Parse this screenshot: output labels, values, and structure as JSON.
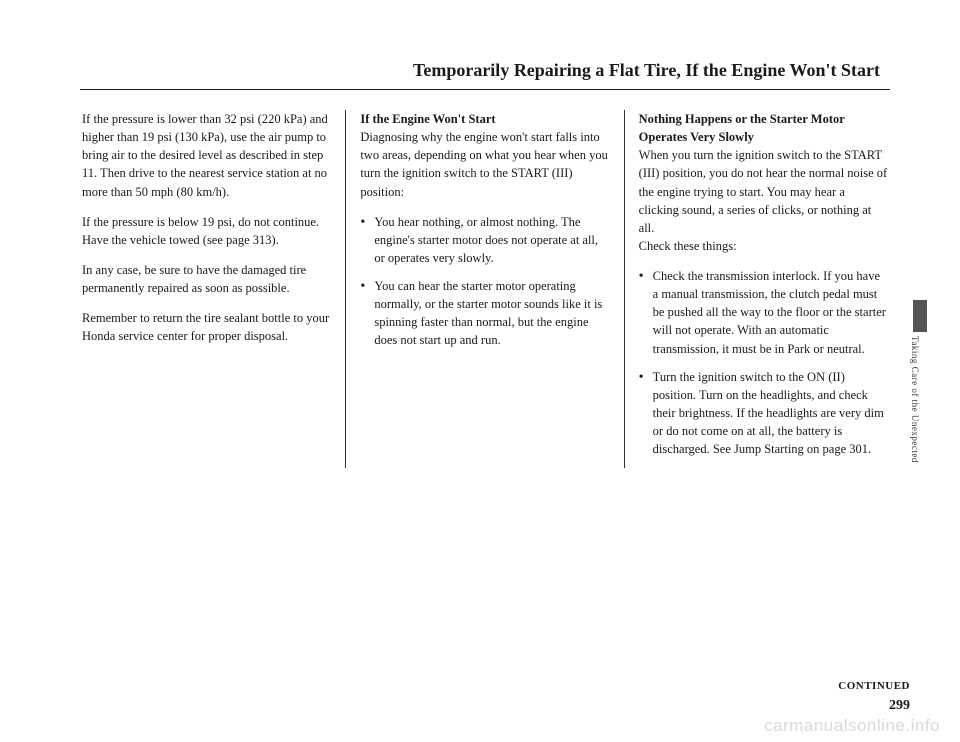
{
  "title": "Temporarily Repairing a Flat Tire, If the Engine Won't Start",
  "col1": {
    "p1": "If the pressure is lower than 32 psi (220 kPa) and higher than 19 psi (130 kPa), use the air pump to bring air to the desired level as described in step 11. Then drive to the nearest service station at no more than 50 mph (80 km/h).",
    "p2": "If the pressure is below 19 psi, do not continue. Have the vehicle towed (see page 313).",
    "p3": "In any case, be sure to have the damaged tire permanently repaired as soon as possible.",
    "p4": "Remember to return the tire sealant bottle to your Honda service center for proper disposal."
  },
  "col2": {
    "h1": "If the Engine Won't Start",
    "p1": "Diagnosing why the engine won't start falls into two areas, depending on what you hear when you turn the ignition switch to the START (III) position:",
    "li1": "You hear nothing, or almost nothing. The engine's starter motor does not operate at all, or operates very slowly.",
    "li2": "You can hear the starter motor operating normally, or the starter motor sounds like it is spinning faster than normal, but the engine does not start up and run."
  },
  "col3": {
    "h1": "Nothing Happens or the Starter Motor Operates Very Slowly",
    "p1": "When you turn the ignition switch to the START (III) position, you do not hear the normal noise of the engine trying to start. You may hear a clicking sound, a series of clicks, or nothing at all.",
    "p2": "Check these things:",
    "li1": "Check the transmission interlock. If you have a manual transmission, the clutch pedal must be pushed all the way to the floor or the starter will not operate. With an automatic transmission, it must be in Park or neutral.",
    "li2": "Turn the ignition switch to the ON (II) position. Turn on the headlights, and check their brightness. If the headlights are very dim or do not come on at all, the battery is discharged. See Jump Starting on page 301."
  },
  "sideTab": "Taking Care of the Unexpected",
  "continued": "CONTINUED",
  "pageNum": "299",
  "watermark": "carmanualsonline.info"
}
